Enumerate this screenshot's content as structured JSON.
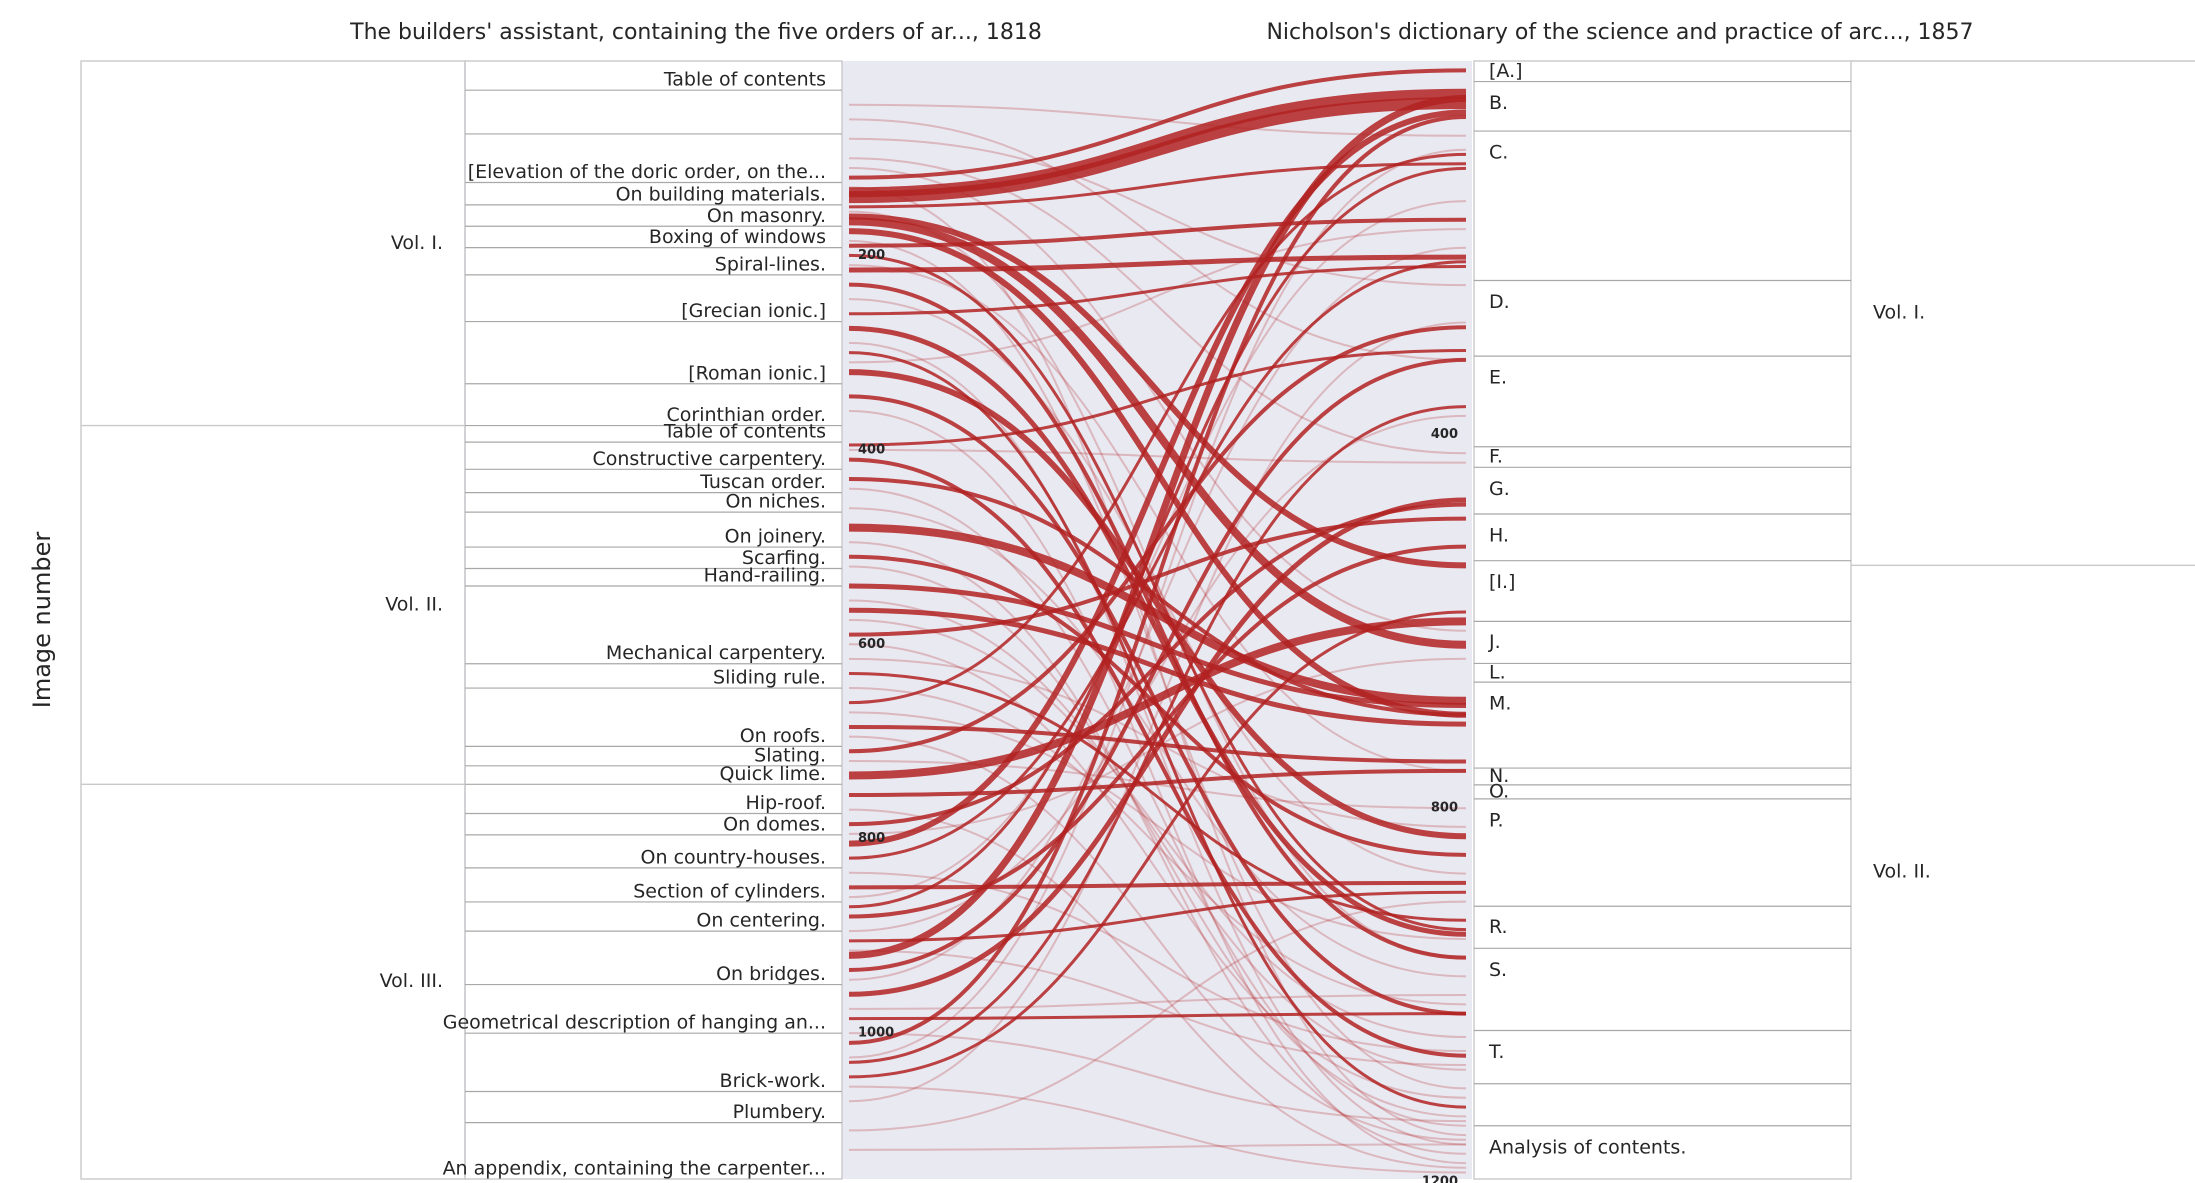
{
  "titles": {
    "left": "The builders' assistant, containing the five orders of ar..., 1818",
    "right": "Nicholson's dictionary of the science and practice of arc..., 1857"
  },
  "ylabel": "Image number",
  "colors": {
    "link": "#b22222",
    "center_bg": "#e9e9f2",
    "box_stroke": "#c9c9cc",
    "section_line": "#a8a8a8",
    "text": "#262626"
  },
  "left_volumes": [
    {
      "label": "Vol. I.",
      "range": [
        0,
        375
      ]
    },
    {
      "label": "Vol. II.",
      "range": [
        375,
        744
      ]
    },
    {
      "label": "Vol. III.",
      "range": [
        744,
        1150
      ]
    }
  ],
  "right_volumes": [
    {
      "label": "Vol. I.",
      "range": [
        0,
        540
      ]
    },
    {
      "label": "Vol. II.",
      "range": [
        540,
        1197
      ]
    }
  ],
  "left_sections": [
    {
      "label": "Table of contents",
      "range": [
        0,
        30
      ]
    },
    {
      "label": "",
      "range": [
        30,
        75
      ]
    },
    {
      "label": "[Elevation of the doric order, on the...",
      "range": [
        75,
        125
      ]
    },
    {
      "label": "On building materials.",
      "range": [
        125,
        148
      ]
    },
    {
      "label": "On masonry.",
      "range": [
        148,
        170
      ]
    },
    {
      "label": "Boxing of windows",
      "range": [
        170,
        192
      ]
    },
    {
      "label": "Spiral-lines.",
      "range": [
        192,
        220
      ]
    },
    {
      "label": "[Grecian ionic.]",
      "range": [
        220,
        268
      ]
    },
    {
      "label": "[Roman ionic.]",
      "range": [
        268,
        332
      ]
    },
    {
      "label": "Corinthian order.",
      "range": [
        332,
        375
      ]
    },
    {
      "label": "Table of contents",
      "range": [
        375,
        392
      ]
    },
    {
      "label": "Constructive carpentery.",
      "range": [
        392,
        420
      ]
    },
    {
      "label": "Tuscan order.",
      "range": [
        420,
        444
      ]
    },
    {
      "label": "On niches.",
      "range": [
        444,
        464
      ]
    },
    {
      "label": "On joinery.",
      "range": [
        464,
        500
      ]
    },
    {
      "label": "Scarfing.",
      "range": [
        500,
        522
      ]
    },
    {
      "label": "Hand-railing.",
      "range": [
        522,
        540
      ]
    },
    {
      "label": "Mechanical carpentery.",
      "range": [
        540,
        620
      ]
    },
    {
      "label": "Sliding rule.",
      "range": [
        620,
        645
      ]
    },
    {
      "label": "On roofs.",
      "range": [
        645,
        705
      ]
    },
    {
      "label": "Slating.",
      "range": [
        705,
        725
      ]
    },
    {
      "label": "Quick lime.",
      "range": [
        725,
        744
      ]
    },
    {
      "label": "Hip-roof.",
      "range": [
        744,
        774
      ]
    },
    {
      "label": "On domes.",
      "range": [
        774,
        796
      ]
    },
    {
      "label": "On country-houses.",
      "range": [
        796,
        830
      ]
    },
    {
      "label": "Section of cylinders.",
      "range": [
        830,
        865
      ]
    },
    {
      "label": "On centering.",
      "range": [
        865,
        895
      ]
    },
    {
      "label": "On bridges.",
      "range": [
        895,
        950
      ]
    },
    {
      "label": "Geometrical description of hanging an...",
      "range": [
        950,
        1000
      ]
    },
    {
      "label": "Brick-work.",
      "range": [
        1000,
        1060
      ]
    },
    {
      "label": "Plumbery.",
      "range": [
        1060,
        1092
      ]
    },
    {
      "label": "An appendix, containing the carpenter...",
      "range": [
        1092,
        1150
      ]
    }
  ],
  "right_sections": [
    {
      "label": "[A.]",
      "range": [
        0,
        22
      ]
    },
    {
      "label": "B.",
      "range": [
        22,
        75
      ]
    },
    {
      "label": "C.",
      "range": [
        75,
        235
      ]
    },
    {
      "label": "D.",
      "range": [
        235,
        316
      ]
    },
    {
      "label": "E.",
      "range": [
        316,
        413
      ]
    },
    {
      "label": "F.",
      "range": [
        413,
        435
      ]
    },
    {
      "label": "G.",
      "range": [
        435,
        485
      ]
    },
    {
      "label": "H.",
      "range": [
        485,
        535
      ]
    },
    {
      "label": "[I.]",
      "range": [
        535,
        600
      ]
    },
    {
      "label": "J.",
      "range": [
        600,
        645
      ]
    },
    {
      "label": "L.",
      "range": [
        645,
        665
      ]
    },
    {
      "label": "M.",
      "range": [
        665,
        757
      ]
    },
    {
      "label": "N.",
      "range": [
        757,
        775
      ]
    },
    {
      "label": "O.",
      "range": [
        775,
        790
      ]
    },
    {
      "label": "P.",
      "range": [
        790,
        905
      ]
    },
    {
      "label": "R.",
      "range": [
        905,
        950
      ]
    },
    {
      "label": "S.",
      "range": [
        950,
        1038
      ]
    },
    {
      "label": "T.",
      "range": [
        1038,
        1095
      ]
    },
    {
      "label": "",
      "range": [
        1095,
        1140
      ]
    },
    {
      "label": "Analysis of contents.",
      "range": [
        1140,
        1197
      ]
    }
  ],
  "left_ticks": [
    200,
    400,
    600,
    800,
    1000
  ],
  "right_ticks": [
    400,
    800,
    1200
  ],
  "chart_data": {
    "type": "sankey",
    "left_range": [
      0,
      1150
    ],
    "right_range": [
      0,
      1197
    ],
    "links": [
      {
        "l": 120,
        "r": 10,
        "w": 4,
        "o": 0.85
      },
      {
        "l": 135,
        "r": 35,
        "w": 10,
        "o": 0.85
      },
      {
        "l": 140,
        "r": 45,
        "w": 12,
        "o": 0.85
      },
      {
        "l": 150,
        "r": 110,
        "w": 3,
        "o": 0.85
      },
      {
        "l": 160,
        "r": 540,
        "w": 6,
        "o": 0.85
      },
      {
        "l": 165,
        "r": 625,
        "w": 8,
        "o": 0.85
      },
      {
        "l": 175,
        "r": 700,
        "w": 6,
        "o": 0.85
      },
      {
        "l": 190,
        "r": 170,
        "w": 4,
        "o": 0.85
      },
      {
        "l": 200,
        "r": 930,
        "w": 3,
        "o": 0.85
      },
      {
        "l": 215,
        "r": 210,
        "w": 5,
        "o": 0.85
      },
      {
        "l": 230,
        "r": 960,
        "w": 4,
        "o": 0.85
      },
      {
        "l": 260,
        "r": 220,
        "w": 3,
        "o": 0.85
      },
      {
        "l": 275,
        "r": 935,
        "w": 5,
        "o": 0.85
      },
      {
        "l": 300,
        "r": 1120,
        "w": 3,
        "o": 0.85
      },
      {
        "l": 320,
        "r": 830,
        "w": 6,
        "o": 0.85
      },
      {
        "l": 345,
        "r": 1020,
        "w": 4,
        "o": 0.85
      },
      {
        "l": 395,
        "r": 310,
        "w": 3,
        "o": 0.85
      },
      {
        "l": 410,
        "r": 1065,
        "w": 4,
        "o": 0.85
      },
      {
        "l": 430,
        "r": 700,
        "w": 4,
        "o": 0.85
      },
      {
        "l": 480,
        "r": 685,
        "w": 8,
        "o": 0.85
      },
      {
        "l": 510,
        "r": 850,
        "w": 4,
        "o": 0.85
      },
      {
        "l": 540,
        "r": 690,
        "w": 5,
        "o": 0.85
      },
      {
        "l": 565,
        "r": 710,
        "w": 5,
        "o": 0.85
      },
      {
        "l": 590,
        "r": 490,
        "w": 4,
        "o": 0.85
      },
      {
        "l": 630,
        "r": 920,
        "w": 3,
        "o": 0.85
      },
      {
        "l": 660,
        "r": 100,
        "w": 3,
        "o": 0.85
      },
      {
        "l": 685,
        "r": 750,
        "w": 4,
        "o": 0.85
      },
      {
        "l": 710,
        "r": 285,
        "w": 4,
        "o": 0.85
      },
      {
        "l": 735,
        "r": 600,
        "w": 8,
        "o": 0.85
      },
      {
        "l": 755,
        "r": 760,
        "w": 4,
        "o": 0.85
      },
      {
        "l": 785,
        "r": 475,
        "w": 4,
        "o": 0.85
      },
      {
        "l": 805,
        "r": 55,
        "w": 6,
        "o": 0.85
      },
      {
        "l": 820,
        "r": 215,
        "w": 3,
        "o": 0.85
      },
      {
        "l": 850,
        "r": 880,
        "w": 4,
        "o": 0.85
      },
      {
        "l": 870,
        "r": 115,
        "w": 3,
        "o": 0.85
      },
      {
        "l": 880,
        "r": 520,
        "w": 4,
        "o": 0.85
      },
      {
        "l": 905,
        "r": 890,
        "w": 3,
        "o": 0.85
      },
      {
        "l": 920,
        "r": 40,
        "w": 7,
        "o": 0.85
      },
      {
        "l": 935,
        "r": 320,
        "w": 4,
        "o": 0.85
      },
      {
        "l": 960,
        "r": 470,
        "w": 5,
        "o": 0.85
      },
      {
        "l": 985,
        "r": 1020,
        "w": 3,
        "o": 0.85
      },
      {
        "l": 1010,
        "r": 60,
        "w": 4,
        "o": 0.85
      },
      {
        "l": 1030,
        "r": 370,
        "w": 3,
        "o": 0.85
      },
      {
        "l": 1045,
        "r": 590,
        "w": 3,
        "o": 0.85
      },
      {
        "l": 45,
        "r": 80,
        "w": 2,
        "o": 0.25
      },
      {
        "l": 60,
        "r": 320,
        "w": 2,
        "o": 0.25
      },
      {
        "l": 80,
        "r": 240,
        "w": 2,
        "o": 0.25
      },
      {
        "l": 100,
        "r": 420,
        "w": 2,
        "o": 0.25
      },
      {
        "l": 110,
        "r": 610,
        "w": 2,
        "o": 0.25
      },
      {
        "l": 130,
        "r": 1150,
        "w": 2,
        "o": 0.25
      },
      {
        "l": 155,
        "r": 960,
        "w": 2,
        "o": 0.25
      },
      {
        "l": 185,
        "r": 1100,
        "w": 2,
        "o": 0.25
      },
      {
        "l": 210,
        "r": 760,
        "w": 2,
        "o": 0.25
      },
      {
        "l": 245,
        "r": 870,
        "w": 2,
        "o": 0.25
      },
      {
        "l": 290,
        "r": 1160,
        "w": 2,
        "o": 0.25
      },
      {
        "l": 310,
        "r": 180,
        "w": 2,
        "o": 0.25
      },
      {
        "l": 360,
        "r": 1180,
        "w": 2,
        "o": 0.25
      },
      {
        "l": 400,
        "r": 430,
        "w": 2,
        "o": 0.25
      },
      {
        "l": 440,
        "r": 1140,
        "w": 2,
        "o": 0.25
      },
      {
        "l": 460,
        "r": 980,
        "w": 2,
        "o": 0.25
      },
      {
        "l": 495,
        "r": 1170,
        "w": 2,
        "o": 0.25
      },
      {
        "l": 520,
        "r": 1130,
        "w": 2,
        "o": 0.25
      },
      {
        "l": 555,
        "r": 1080,
        "w": 2,
        "o": 0.25
      },
      {
        "l": 575,
        "r": 1045,
        "w": 2,
        "o": 0.25
      },
      {
        "l": 600,
        "r": 1110,
        "w": 2,
        "o": 0.25
      },
      {
        "l": 615,
        "r": 820,
        "w": 2,
        "o": 0.25
      },
      {
        "l": 645,
        "r": 1010,
        "w": 2,
        "o": 0.25
      },
      {
        "l": 670,
        "r": 940,
        "w": 2,
        "o": 0.25
      },
      {
        "l": 695,
        "r": 1155,
        "w": 2,
        "o": 0.25
      },
      {
        "l": 720,
        "r": 800,
        "w": 2,
        "o": 0.25
      },
      {
        "l": 770,
        "r": 1185,
        "w": 2,
        "o": 0.25
      },
      {
        "l": 795,
        "r": 640,
        "w": 2,
        "o": 0.25
      },
      {
        "l": 835,
        "r": 1060,
        "w": 2,
        "o": 0.25
      },
      {
        "l": 860,
        "r": 150,
        "w": 2,
        "o": 0.25
      },
      {
        "l": 895,
        "r": 380,
        "w": 2,
        "o": 0.25
      },
      {
        "l": 915,
        "r": 1075,
        "w": 2,
        "o": 0.25
      },
      {
        "l": 945,
        "r": 200,
        "w": 2,
        "o": 0.25
      },
      {
        "l": 975,
        "r": 1000,
        "w": 2,
        "o": 0.25
      },
      {
        "l": 1000,
        "r": 1135,
        "w": 2,
        "o": 0.25
      },
      {
        "l": 1025,
        "r": 95,
        "w": 2,
        "o": 0.25
      },
      {
        "l": 1055,
        "r": 1190,
        "w": 2,
        "o": 0.25
      },
      {
        "l": 1070,
        "r": 280,
        "w": 2,
        "o": 0.25
      },
      {
        "l": 1100,
        "r": 900,
        "w": 2,
        "o": 0.25
      },
      {
        "l": 1120,
        "r": 1160,
        "w": 2,
        "o": 0.25
      }
    ]
  }
}
